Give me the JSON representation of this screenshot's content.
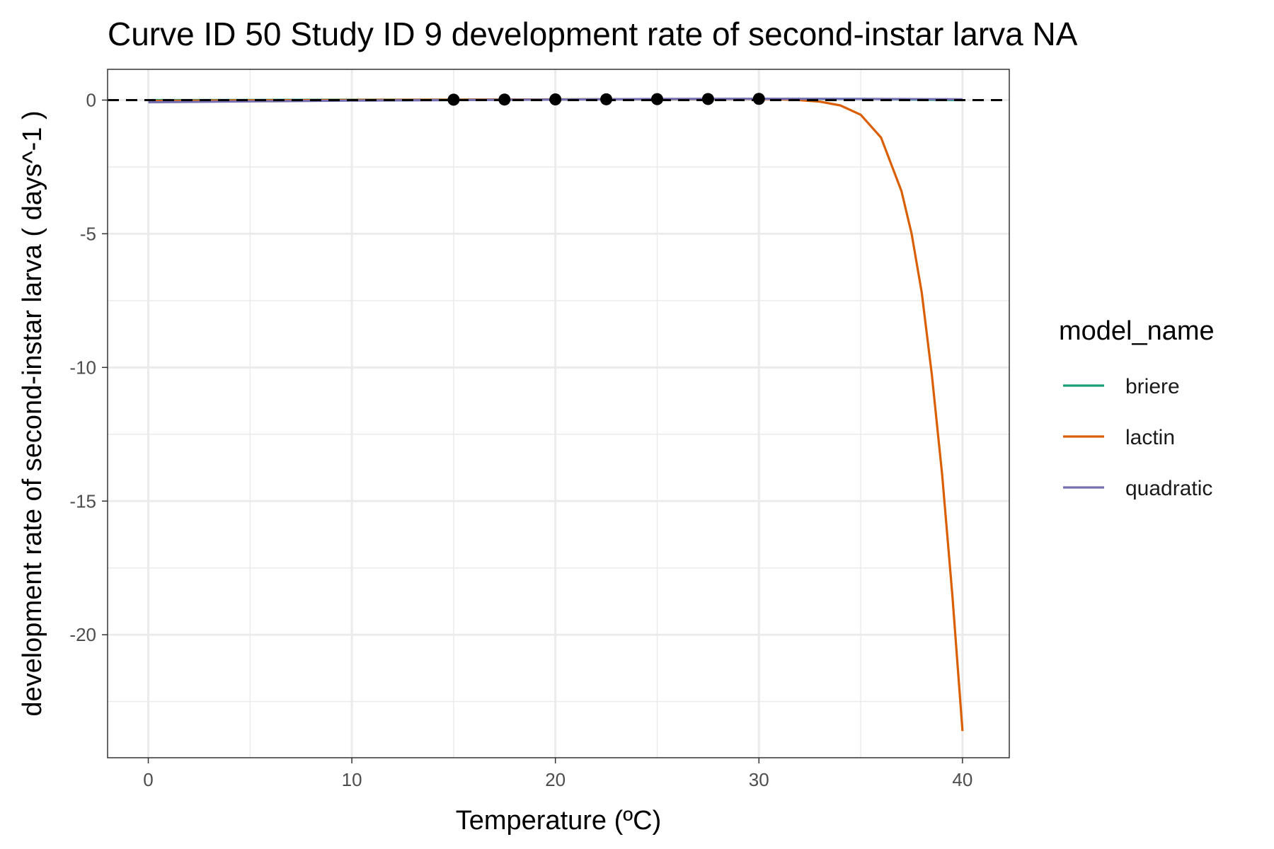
{
  "chart_data": {
    "type": "line",
    "title": "Curve ID 50 Study ID 9 development rate of second-instar larva NA",
    "xlabel": "Temperature (ºC)",
    "ylabel": "development rate of second-instar larva ( days^-1 )",
    "xlim": [
      -2,
      42.3
    ],
    "ylim": [
      -24.6,
      1.15
    ],
    "x_ticks": [
      0,
      10,
      20,
      30,
      40
    ],
    "x_tick_labels": [
      "0",
      "10",
      "20",
      "30",
      "40"
    ],
    "y_ticks": [
      0,
      -5,
      -10,
      -15,
      -20
    ],
    "y_tick_labels": [
      "0",
      "-5",
      "-10",
      "-15",
      "-20"
    ],
    "grid": true,
    "legend": {
      "title": "model_name",
      "placement": "right",
      "entries": [
        "briere",
        "lactin",
        "quadratic"
      ]
    },
    "reference_line": {
      "y": 0,
      "style": "dashed",
      "color": "#000000"
    },
    "points": {
      "x": [
        15,
        17.5,
        20,
        22.5,
        25,
        27.5,
        30
      ],
      "y": [
        0.015,
        0.02,
        0.025,
        0.03,
        0.035,
        0.04,
        0.045
      ],
      "color": "#000000"
    },
    "series": [
      {
        "name": "briere",
        "color": "#1b9e77",
        "x": [
          0,
          5,
          10,
          15,
          20,
          25,
          30,
          35,
          40
        ],
        "y": [
          0.0,
          0.005,
          0.012,
          0.018,
          0.025,
          0.032,
          0.04,
          0.045,
          0.0
        ]
      },
      {
        "name": "lactin",
        "color": "#d95f02",
        "x": [
          0,
          5,
          10,
          15,
          20,
          25,
          30,
          31,
          32,
          33,
          34,
          35,
          36,
          37,
          37.5,
          38,
          38.5,
          39,
          39.5,
          40
        ],
        "y": [
          -0.03,
          -0.01,
          0.005,
          0.015,
          0.025,
          0.035,
          0.04,
          0.03,
          0.0,
          -0.06,
          -0.2,
          -0.55,
          -1.4,
          -3.4,
          -5.0,
          -7.2,
          -10.3,
          -14.0,
          -18.5,
          -23.6
        ]
      },
      {
        "name": "quadratic",
        "color": "#7570b3",
        "x": [
          0,
          5,
          10,
          15,
          20,
          25,
          30,
          35,
          40
        ],
        "y": [
          -0.08,
          -0.05,
          -0.02,
          0.0,
          0.02,
          0.04,
          0.05,
          0.045,
          0.03
        ]
      }
    ]
  }
}
